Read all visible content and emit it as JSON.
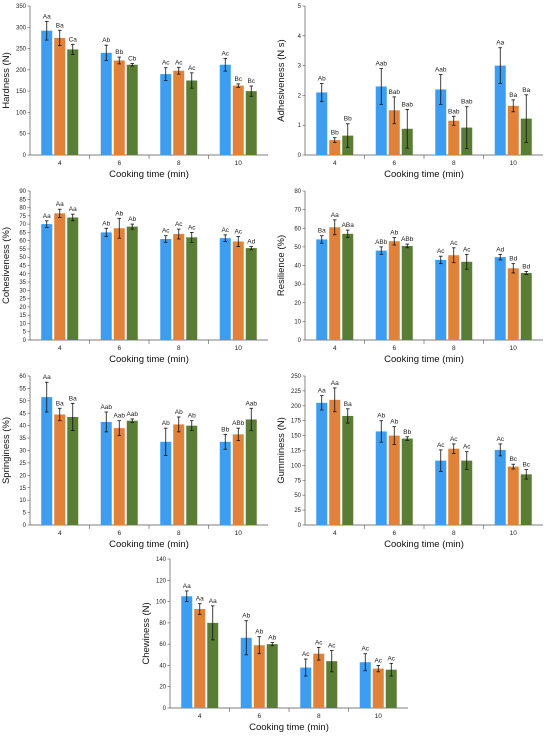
{
  "colors": {
    "series": [
      "#3d9df0",
      "#e0823a",
      "#5a7d35"
    ],
    "axis": "#555555",
    "error_bar": "#111111"
  },
  "chart_data": [
    {
      "id": "hardness",
      "type": "bar",
      "xlabel": "Cooking time (min)",
      "ylabel": "Hardness (N)",
      "ylim": [
        0,
        350
      ],
      "yticks": [
        0,
        50,
        100,
        150,
        200,
        250,
        300,
        350
      ],
      "categories": [
        "4",
        "6",
        "8",
        "10"
      ],
      "series": [
        {
          "values": [
            292,
            240,
            190,
            212
          ],
          "errors": [
            22,
            18,
            15,
            15
          ],
          "labels": [
            "Aa",
            "Ab",
            "Ac",
            "Ac"
          ]
        },
        {
          "values": [
            275,
            222,
            198,
            163
          ],
          "errors": [
            18,
            8,
            8,
            4
          ],
          "labels": [
            "Ba",
            "Bb",
            "Ac",
            "Bc"
          ]
        },
        {
          "values": [
            248,
            212,
            175,
            150
          ],
          "errors": [
            12,
            3,
            18,
            12
          ],
          "labels": [
            "Ca",
            "Cb",
            "Ac",
            "Bc"
          ]
        }
      ]
    },
    {
      "id": "adhesiveness",
      "type": "bar",
      "xlabel": "Cooking time (min)",
      "ylabel": "Adhesiveness (N s)",
      "ylim": [
        0,
        5
      ],
      "yticks": [
        0,
        1,
        2,
        3,
        4,
        5
      ],
      "categories": [
        "4",
        "6",
        "8",
        "10"
      ],
      "series": [
        {
          "values": [
            2.1,
            2.3,
            2.2,
            3.0
          ],
          "errors": [
            0.3,
            0.6,
            0.5,
            0.6
          ],
          "labels": [
            "Ab",
            "Aab",
            "Aab",
            "Aa"
          ]
        },
        {
          "values": [
            0.5,
            1.5,
            1.15,
            1.65
          ],
          "errors": [
            0.08,
            0.45,
            0.15,
            0.2
          ],
          "labels": [
            "Bb",
            "Bab",
            "Bab",
            "Ba"
          ]
        },
        {
          "values": [
            0.65,
            0.88,
            0.92,
            1.22
          ],
          "errors": [
            0.4,
            0.65,
            0.7,
            0.8
          ],
          "labels": [
            "Bb",
            "Bab",
            "Bab",
            "Ba"
          ]
        }
      ]
    },
    {
      "id": "cohesiveness",
      "type": "bar",
      "xlabel": "Cooking time (min)",
      "ylabel": "Cohesiveness (%)",
      "ylim": [
        0,
        90
      ],
      "yticks": [
        0,
        5,
        10,
        15,
        20,
        25,
        30,
        35,
        40,
        45,
        50,
        55,
        60,
        65,
        70,
        75,
        80,
        85,
        90
      ],
      "categories": [
        "4",
        "6",
        "8",
        "10"
      ],
      "series": [
        {
          "values": [
            70,
            65,
            61,
            61.5
          ],
          "errors": [
            2,
            2.5,
            2,
            2
          ],
          "labels": [
            "Aa",
            "Ab",
            "Ac",
            "Ac"
          ]
        },
        {
          "values": [
            76.5,
            67.5,
            64,
            59.5
          ],
          "errors": [
            2.5,
            6,
            3,
            3
          ],
          "labels": [
            "Aa",
            "Ab",
            "Ac",
            "Ac"
          ]
        },
        {
          "values": [
            74,
            68.5,
            62,
            55.5
          ],
          "errors": [
            2,
            1.5,
            3,
            1
          ],
          "labels": [
            "Aa",
            "Ab",
            "Ac",
            "Ad"
          ]
        }
      ]
    },
    {
      "id": "resilience",
      "type": "bar",
      "xlabel": "Cooking time (min)",
      "ylabel": "Resilience (%)",
      "ylim": [
        0,
        80
      ],
      "yticks": [
        0,
        10,
        20,
        30,
        40,
        50,
        60,
        70,
        80
      ],
      "categories": [
        "4",
        "6",
        "8",
        "10"
      ],
      "series": [
        {
          "values": [
            54,
            48,
            43,
            44.5
          ],
          "errors": [
            2,
            2,
            2,
            1.5
          ],
          "labels": [
            "Ba",
            "ABb",
            "Ac",
            "Ad"
          ]
        },
        {
          "values": [
            60.5,
            53,
            45.5,
            38.5
          ],
          "errors": [
            4,
            2,
            4,
            2.5
          ],
          "labels": [
            "Aa",
            "Ab",
            "Ac",
            "Bd"
          ]
        },
        {
          "values": [
            57,
            50.5,
            42,
            36
          ],
          "errors": [
            2,
            1,
            4,
            0.8
          ],
          "labels": [
            "ABa",
            "ABb",
            "Ac",
            "Bd"
          ]
        }
      ]
    },
    {
      "id": "springiness",
      "type": "bar",
      "xlabel": "Cooking time (min)",
      "ylabel": "Springiness (%)",
      "ylim": [
        0,
        60
      ],
      "yticks": [
        0,
        5,
        10,
        15,
        20,
        25,
        30,
        35,
        40,
        45,
        50,
        55,
        60
      ],
      "categories": [
        "4",
        "6",
        "8",
        "10"
      ],
      "series": [
        {
          "values": [
            51.5,
            41.5,
            33.5,
            33.5
          ],
          "errors": [
            6,
            4,
            5.5,
            3
          ],
          "labels": [
            "Aa",
            "Aab",
            "Ab",
            "Bb"
          ]
        },
        {
          "values": [
            44.5,
            39,
            40.5,
            36.5
          ],
          "errors": [
            2.5,
            3,
            3,
            2.5
          ],
          "labels": [
            "Ba",
            "Aab",
            "Ab",
            "ABb"
          ]
        },
        {
          "values": [
            43.5,
            42,
            40,
            42.5
          ],
          "errors": [
            5.5,
            0.7,
            2,
            4.5
          ],
          "labels": [
            "Ba",
            "Aab",
            "Ab",
            "Aab"
          ]
        }
      ]
    },
    {
      "id": "gumminess",
      "type": "bar",
      "xlabel": "Cooking time (min)",
      "ylabel": "Gumminess (N)",
      "ylim": [
        0,
        250
      ],
      "yticks": [
        0,
        25,
        50,
        75,
        100,
        125,
        150,
        175,
        200,
        225,
        250
      ],
      "categories": [
        "4",
        "6",
        "8",
        "10"
      ],
      "series": [
        {
          "values": [
            205,
            157,
            108,
            126
          ],
          "errors": [
            12,
            18,
            18,
            10
          ],
          "labels": [
            "Aa",
            "Ab",
            "Ac",
            "Ac"
          ]
        },
        {
          "values": [
            210,
            150,
            128,
            98
          ],
          "errors": [
            20,
            15,
            8,
            4
          ],
          "labels": [
            "Aa",
            "Ab",
            "Ac",
            "Bc"
          ]
        },
        {
          "values": [
            183,
            145,
            108,
            85
          ],
          "errors": [
            12,
            3,
            15,
            8
          ],
          "labels": [
            "Ba",
            "Bb",
            "Ac",
            "Bc"
          ]
        }
      ]
    },
    {
      "id": "chewiness",
      "type": "bar",
      "xlabel": "Cooking time (min)",
      "ylabel": "Chewiness (N)",
      "ylim": [
        0,
        140
      ],
      "yticks": [
        0,
        20,
        40,
        60,
        80,
        100,
        120,
        140
      ],
      "categories": [
        "4",
        "6",
        "8",
        "10"
      ],
      "series": [
        {
          "values": [
            105,
            66,
            38,
            43
          ],
          "errors": [
            5,
            16,
            8,
            8
          ],
          "labels": [
            "Aa",
            "Ab",
            "Ac",
            "Ac"
          ]
        },
        {
          "values": [
            93,
            59,
            51,
            37
          ],
          "errors": [
            5,
            8,
            6,
            3
          ],
          "labels": [
            "Aa",
            "Ab",
            "Ac",
            "Ac"
          ]
        },
        {
          "values": [
            80,
            60,
            44,
            36
          ],
          "errors": [
            16,
            1.5,
            10,
            6
          ],
          "labels": [
            "Aa",
            "Ab",
            "Ac",
            "Ac"
          ]
        }
      ]
    }
  ]
}
